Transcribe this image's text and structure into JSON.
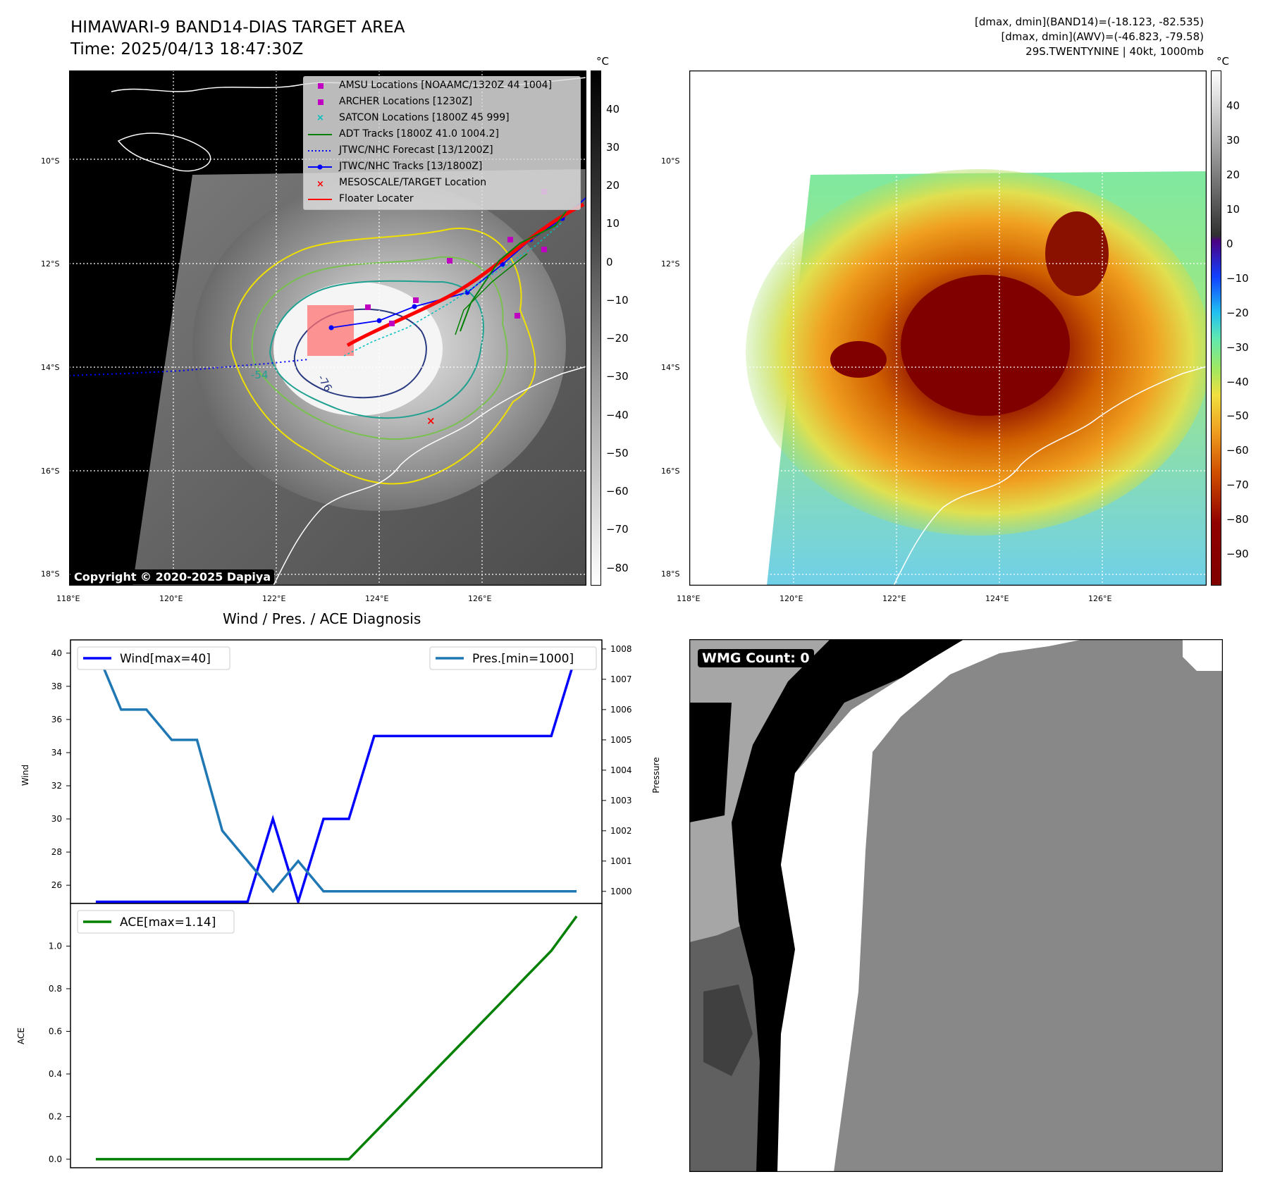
{
  "header": {
    "title_line1": "HIMAWARI-9 BAND14-DIAS TARGET AREA",
    "title_line2": "Time: 2025/04/13 18:47:30Z",
    "info_line1": "[dmax, dmin](BAND14)=(-18.123, -82.535)",
    "info_line2": "[dmax, dmin](AWV)=(-46.823, -79.58)",
    "info_line3": "29S.TWENTYNINE | 40kt, 1000mb"
  },
  "copyright": "Copyright © 2020-2025 Dapiya",
  "map_axes": {
    "lat_labels": [
      "10°S",
      "12°S",
      "14°S",
      "16°S",
      "18°S"
    ],
    "lon_labels": [
      "118°E",
      "120°E",
      "122°E",
      "124°E",
      "126°E"
    ]
  },
  "colorbar_left": {
    "unit": "°C",
    "ticks": [
      "40",
      "30",
      "20",
      "10",
      "0",
      "−10",
      "−20",
      "−30",
      "−40",
      "−50",
      "−60",
      "−70",
      "−80"
    ]
  },
  "colorbar_right": {
    "unit": "°C",
    "ticks": [
      "40",
      "30",
      "20",
      "10",
      "0",
      "−10",
      "−20",
      "−30",
      "−40",
      "−50",
      "−60",
      "−70",
      "−80",
      "−90"
    ]
  },
  "legend": {
    "items": [
      {
        "label": "AMSU Locations [NOAAMC/1320Z 44 1004]",
        "color": "#c000c0",
        "marker": "square"
      },
      {
        "label": "ARCHER Locations [1230Z]",
        "color": "#c000c0",
        "marker": "square"
      },
      {
        "label": "SATCON Locations [1800Z 45 999]",
        "color": "#00bfbf",
        "marker": "x"
      },
      {
        "label": "ADT Tracks [1800Z 41.0 1004.2]",
        "color": "#008000",
        "marker": "line"
      },
      {
        "label": "JTWC/NHC Forecast [13/1200Z]",
        "color": "#0000ff",
        "marker": "dotted"
      },
      {
        "label": "JTWC/NHC Tracks [13/1800Z]",
        "color": "#0000ff",
        "marker": "line-dot"
      },
      {
        "label": "MESOSCALE/TARGET Location",
        "color": "#ff0000",
        "marker": "x"
      },
      {
        "label": "Floater Locater",
        "color": "#ff0000",
        "marker": "line"
      }
    ]
  },
  "contour_labels": [
    "-54",
    "-76"
  ],
  "diag_title": "Wind / Pres. / ACE Diagnosis",
  "wmg_label": "WMG Count: 0",
  "chart_data": [
    {
      "type": "line",
      "title": "Wind / Pres. / ACE Diagnosis",
      "ylabel": "Wind",
      "y2label": "Pressure",
      "ylim": [
        24.9,
        40.8
      ],
      "y2lim": [
        999.6,
        1008.3
      ],
      "yticks": [
        26,
        28,
        30,
        32,
        34,
        36,
        38,
        40
      ],
      "y2ticks": [
        1000,
        1001,
        1002,
        1003,
        1004,
        1005,
        1006,
        1007,
        1008
      ],
      "x": [
        0,
        1,
        2,
        3,
        4,
        5,
        6,
        7,
        8,
        9,
        10,
        11,
        12,
        13,
        14,
        15,
        16,
        17,
        18,
        19
      ],
      "series": [
        {
          "name": "Wind[max=40]",
          "color": "#0000ff",
          "axis": "left",
          "values": [
            25,
            25,
            25,
            25,
            25,
            25,
            25,
            30,
            25,
            30,
            30,
            35,
            35,
            35,
            35,
            35,
            35,
            35,
            35,
            40
          ]
        },
        {
          "name": "Pres.[min=1000]",
          "color": "#1f77b4",
          "axis": "right",
          "values": [
            1008,
            1006,
            1006,
            1005,
            1005,
            1002,
            1001,
            1000,
            1001,
            1000,
            1000,
            1000,
            1000,
            1000,
            1000,
            1000,
            1000,
            1000,
            1000,
            1000
          ]
        }
      ],
      "legend": "upper-left / upper-right"
    },
    {
      "type": "line",
      "ylabel": "ACE",
      "ylim": [
        -0.04,
        1.2
      ],
      "yticks": [
        "0.0",
        "0.2",
        "0.4",
        "0.6",
        "0.8",
        "1.0"
      ],
      "x": [
        0,
        1,
        2,
        3,
        4,
        5,
        6,
        7,
        8,
        9,
        10,
        11,
        12,
        13,
        14,
        15,
        16,
        17,
        18,
        19
      ],
      "series": [
        {
          "name": "ACE[max=1.14]",
          "color": "#008000",
          "values": [
            0,
            0,
            0,
            0,
            0,
            0,
            0,
            0,
            0,
            0,
            0,
            0.122,
            0.244,
            0.367,
            0.489,
            0.611,
            0.733,
            0.856,
            0.978,
            1.14
          ]
        }
      ],
      "legend": "upper-left"
    }
  ]
}
